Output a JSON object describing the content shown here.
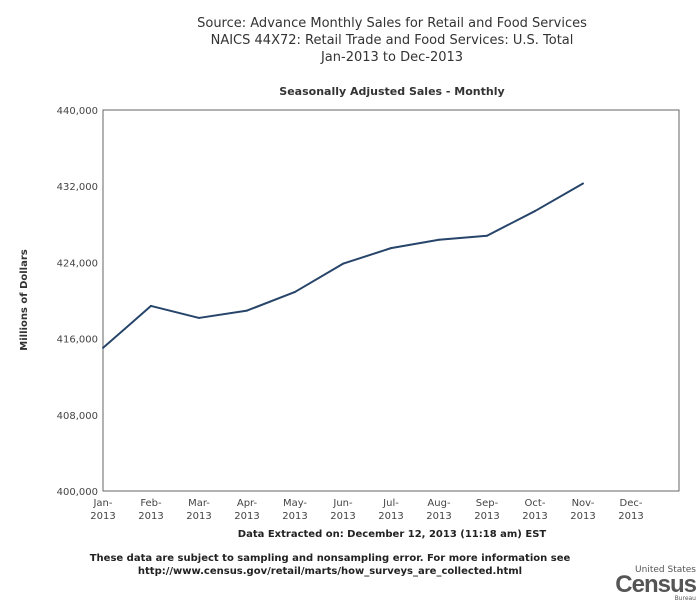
{
  "chart_data": {
    "type": "line",
    "title_lines": [
      "Source: Advance Monthly Sales for Retail and Food Services",
      "NAICS 44X72: Retail Trade and Food Services: U.S. Total",
      "Jan-2013 to Dec-2013"
    ],
    "subtitle": "Seasonally Adjusted Sales - Monthly",
    "ylabel": "Millions of Dollars",
    "xlabel": "Data Extracted on: December 12, 2013 (11:18 am) EST",
    "ylim": [
      400000,
      440000
    ],
    "yticks": [
      400000,
      408000,
      416000,
      424000,
      432000,
      440000
    ],
    "ytick_labels": [
      "400,000",
      "408,000",
      "416,000",
      "424,000",
      "432,000",
      "440,000"
    ],
    "categories": [
      [
        "Jan-",
        "2013"
      ],
      [
        "Feb-",
        "2013"
      ],
      [
        "Mar-",
        "2013"
      ],
      [
        "Apr-",
        "2013"
      ],
      [
        "May-",
        "2013"
      ],
      [
        "Jun-",
        "2013"
      ],
      [
        "Jul-",
        "2013"
      ],
      [
        "Aug-",
        "2013"
      ],
      [
        "Sep-",
        "2013"
      ],
      [
        "Oct-",
        "2013"
      ],
      [
        "Nov-",
        "2013"
      ],
      [
        "Dec-",
        "2013"
      ]
    ],
    "series": [
      {
        "name": "Seasonally Adjusted Sales",
        "color": "#27456a",
        "values": [
          415020,
          419430,
          418170,
          418940,
          420900,
          423860,
          425500,
          426380,
          426800,
          429390,
          432280,
          null
        ]
      }
    ],
    "grid": false,
    "legend": "none"
  },
  "footer": {
    "line1": "These data are subject to sampling and nonsampling error. For more information see",
    "line2": "http://www.census.gov/retail/marts/how_surveys_are_collected.html"
  },
  "logo": {
    "top": "United States",
    "main": "Census",
    "bottom": "Bureau"
  }
}
